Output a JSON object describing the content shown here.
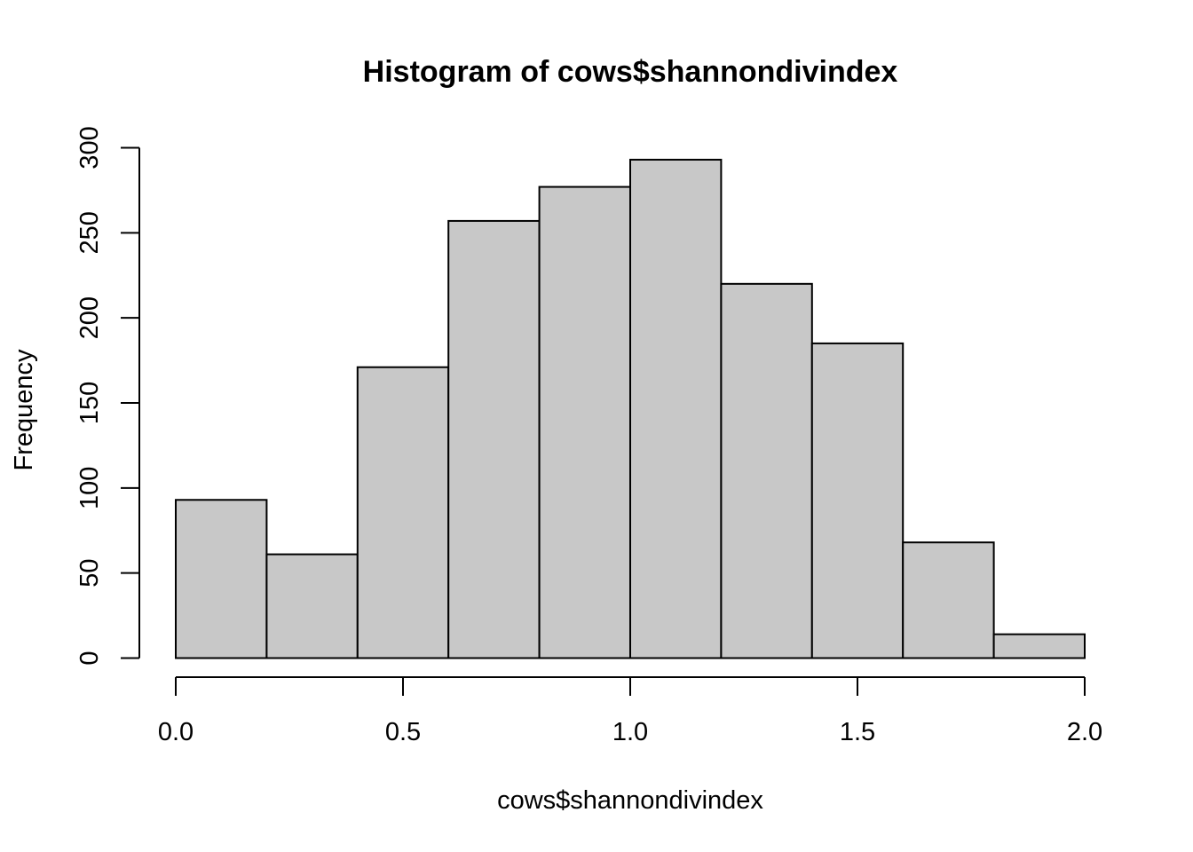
{
  "chart_data": {
    "type": "bar",
    "title": "Histogram of cows$shannondivindex",
    "xlabel": "cows$shannondivindex",
    "ylabel": "Frequency",
    "bins": [
      {
        "from": 0.0,
        "to": 0.2,
        "count": 93
      },
      {
        "from": 0.2,
        "to": 0.4,
        "count": 61
      },
      {
        "from": 0.4,
        "to": 0.6,
        "count": 171
      },
      {
        "from": 0.6,
        "to": 0.8,
        "count": 257
      },
      {
        "from": 0.8,
        "to": 1.0,
        "count": 277
      },
      {
        "from": 1.0,
        "to": 1.2,
        "count": 293
      },
      {
        "from": 1.2,
        "to": 1.4,
        "count": 220
      },
      {
        "from": 1.4,
        "to": 1.6,
        "count": 185
      },
      {
        "from": 1.6,
        "to": 1.8,
        "count": 68
      },
      {
        "from": 1.8,
        "to": 2.0,
        "count": 14
      }
    ],
    "xlim": [
      0.0,
      2.0
    ],
    "ylim": [
      0,
      300
    ],
    "x_ticks": [
      0.0,
      0.5,
      1.0,
      1.5,
      2.0
    ],
    "x_tick_labels": [
      "0.0",
      "0.5",
      "1.0",
      "1.5",
      "2.0"
    ],
    "y_ticks": [
      0,
      50,
      100,
      150,
      200,
      250,
      300
    ],
    "y_tick_labels": [
      "0",
      "50",
      "100",
      "150",
      "200",
      "250",
      "300"
    ],
    "bar_fill": "#c8c8c8",
    "bar_stroke": "#000000",
    "grid": false,
    "legend": "none"
  }
}
